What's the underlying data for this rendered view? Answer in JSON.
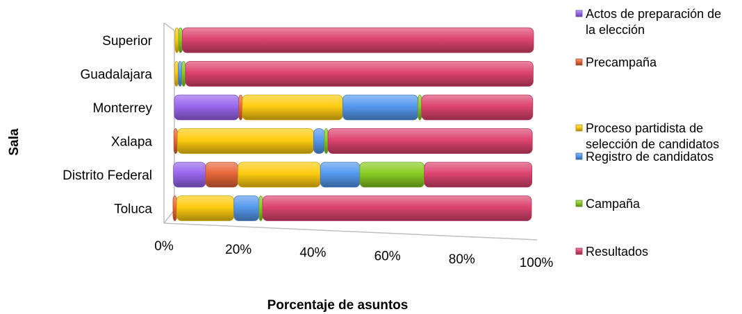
{
  "chart_data": {
    "type": "bar",
    "orientation": "horizontal",
    "stacked": "percent",
    "xlabel": "Porcentaje de asuntos",
    "ylabel": "Sala",
    "x_ticks": [
      "0%",
      "20%",
      "40%",
      "60%",
      "80%",
      "100%"
    ],
    "xlim": [
      0,
      100
    ],
    "grid": false,
    "legend_position": "right",
    "categories": [
      "Superior",
      "Guadalajara",
      "Monterrey",
      "Xalapa",
      "Distrito Federal",
      "Toluca"
    ],
    "series": [
      {
        "name": "Actos de preparación de la elección",
        "color": "#9966ee",
        "values": [
          0,
          0,
          18,
          0,
          9,
          0
        ]
      },
      {
        "name": "Precampaña",
        "color": "#e8663a",
        "values": [
          0,
          0,
          1,
          1,
          9,
          1
        ]
      },
      {
        "name": "Proceso partidista de selección de candidatos",
        "color": "#ffcc11",
        "values": [
          1,
          1,
          28,
          38,
          23,
          16
        ]
      },
      {
        "name": "Registro de candidatos",
        "color": "#5599ee",
        "values": [
          0,
          1,
          21,
          3,
          11,
          7
        ]
      },
      {
        "name": "Campaña",
        "color": "#88cc22",
        "values": [
          1,
          1,
          1,
          1,
          18,
          1
        ]
      },
      {
        "name": "Resultados",
        "color": "#dd4470",
        "values": [
          98,
          97,
          31,
          57,
          30,
          75
        ]
      }
    ]
  }
}
